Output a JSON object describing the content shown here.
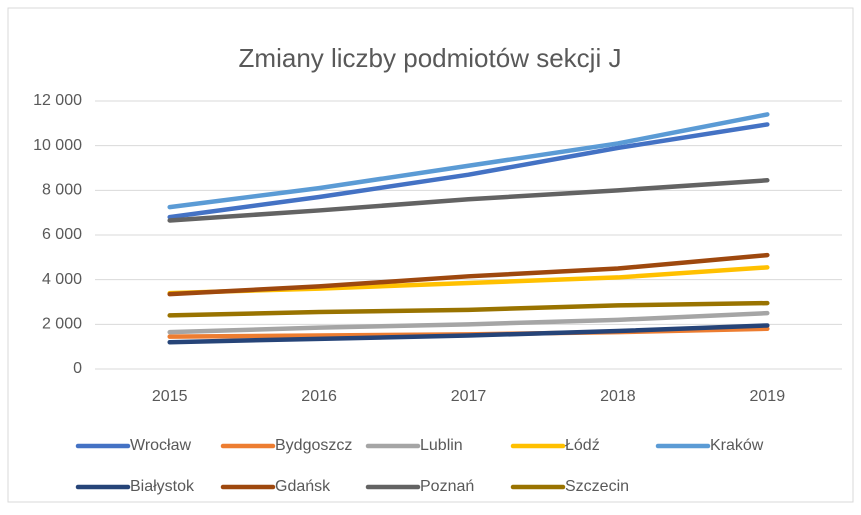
{
  "chart_data": {
    "type": "line",
    "title": "Zmiany liczby podmiotów sekcji J",
    "categories": [
      "2015",
      "2016",
      "2017",
      "2018",
      "2019"
    ],
    "ylim": [
      0,
      12000
    ],
    "yticks": [
      0,
      {
        "value": 2000,
        "label": "2 000"
      },
      {
        "value": 4000,
        "label": "4 000"
      },
      {
        "value": 6000,
        "label": "6 000"
      },
      {
        "value": 8000,
        "label": "8 000"
      },
      {
        "value": 10000,
        "label": "10 000"
      },
      {
        "value": 12000,
        "label": "12 000"
      }
    ],
    "grid": true,
    "legend": "bottom",
    "series": [
      {
        "name": "Wrocław",
        "color": "#4472c4",
        "values": [
          6800,
          7700,
          8700,
          9900,
          10950
        ]
      },
      {
        "name": "Bydgoszcz",
        "color": "#ed7d31",
        "values": [
          1450,
          1500,
          1550,
          1650,
          1800
        ]
      },
      {
        "name": "Lublin",
        "color": "#a5a5a5",
        "values": [
          1650,
          1850,
          2000,
          2200,
          2500
        ]
      },
      {
        "name": "Łódź",
        "color": "#ffc000",
        "values": [
          3400,
          3600,
          3850,
          4100,
          4550
        ]
      },
      {
        "name": "Kraków",
        "color": "#5b9bd5",
        "values": [
          7250,
          8100,
          9100,
          10100,
          11400
        ]
      },
      {
        "name": "Białystok",
        "color": "#264478",
        "values": [
          1200,
          1350,
          1500,
          1700,
          1950
        ]
      },
      {
        "name": "Gdańsk",
        "color": "#9e480e",
        "values": [
          3350,
          3700,
          4150,
          4500,
          5100
        ]
      },
      {
        "name": "Poznań",
        "color": "#636363",
        "values": [
          6650,
          7100,
          7600,
          8000,
          8450
        ]
      },
      {
        "name": "Szczecin",
        "color": "#997300",
        "values": [
          2400,
          2550,
          2650,
          2850,
          2950
        ]
      }
    ]
  }
}
